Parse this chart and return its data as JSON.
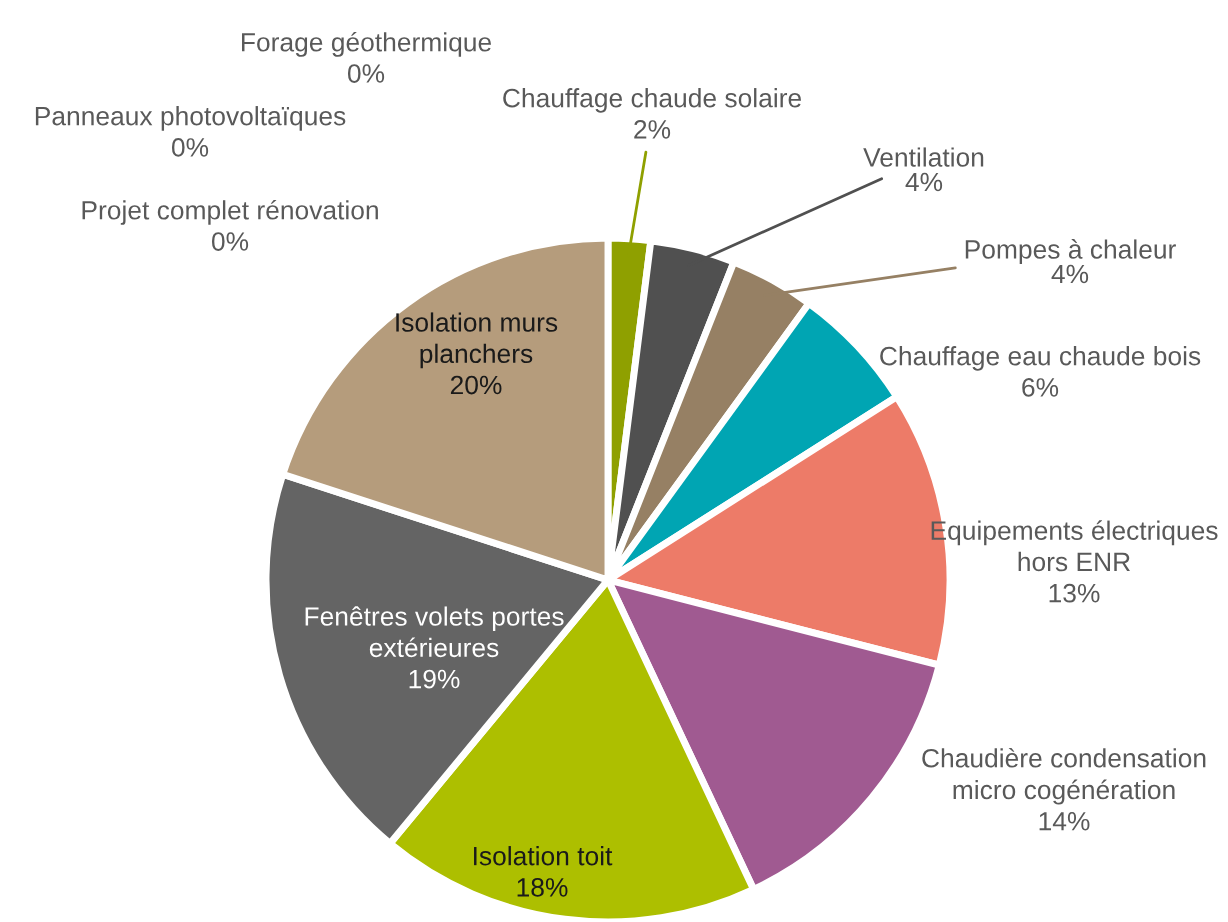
{
  "chart_data": {
    "type": "pie",
    "categories": [
      "Forage géothermique",
      "Panneaux photovoltaïques",
      "Projet complet rénovation",
      "Chauffage chaude solaire",
      "Ventilation",
      "Pompes à chaleur",
      "Chauffage eau chaude bois",
      "Equipements électriques hors ENR",
      "Chaudière condensation micro cogénération",
      "Isolation toit",
      "Fenêtres volets portes extérieures",
      "Isolation murs planchers"
    ],
    "values": [
      0,
      0,
      0,
      2,
      4,
      4,
      6,
      13,
      14,
      18,
      19,
      20
    ],
    "colors": [
      "#a05a91",
      "#ed7b68",
      "#00a5b3",
      "#8fa000",
      "#505050",
      "#968064",
      "#00a5b3",
      "#ed7b68",
      "#a05a91",
      "#adbf00",
      "#646464",
      "#b59c7c"
    ],
    "data_labels": true,
    "value_labels": [
      "0%",
      "0%",
      "0%",
      "2%",
      "4%",
      "4%",
      "6%",
      "13%",
      "14%",
      "18%",
      "19%",
      "20%"
    ]
  }
}
